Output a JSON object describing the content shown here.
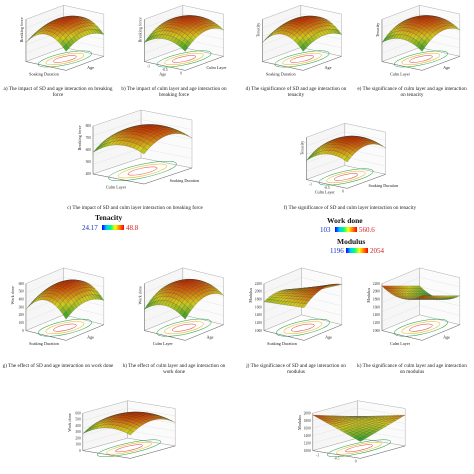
{
  "colors": {
    "legend_low": "#0000ff",
    "legend_high": "#ff0000",
    "surface_high": "#c83200",
    "surface_low": "#1c9a2e",
    "contour_line": "#e04040"
  },
  "panels": {
    "a": {
      "caption": "a) The impact of SD and age interaction on breaking force",
      "zlabel": "Breaking force",
      "xlabel": "Soaking Duration",
      "ylabel": "Age"
    },
    "b": {
      "caption": "b) The impact of culm layer and age interaction on breaking force",
      "zlabel": "Breaking force",
      "xlabel": "Age",
      "ylabel": "Culm Layer",
      "ticks": [
        "-1",
        "-0.5",
        "0"
      ]
    },
    "c": {
      "caption": "c) The impact of SD and culm layer interaction on breaking force",
      "zlabel": "Breaking force",
      "xlabel": "Culm Layer",
      "ylabel": "Soaking Duration",
      "zticks": [
        "800",
        "700",
        "600",
        "500",
        "400"
      ]
    },
    "d": {
      "caption": "d) The significance of SD and age interaction on tenacity",
      "zlabel": "Tenacity",
      "xlabel": "Soaking Duration",
      "ylabel": "Age"
    },
    "e": {
      "caption": "e) The significance of culm layer and age interaction on tenacity",
      "zlabel": "Tenacity",
      "xlabel": "Culm Layer",
      "ylabel": "Age"
    },
    "f": {
      "caption": "f) The significance of SD and culm layer interaction on tenacity",
      "zlabel": "Tenacity",
      "xlabel": "Culm Layer",
      "ylabel": "Soaking Duration",
      "ticks": [
        "-1",
        "-0.5",
        "0"
      ]
    },
    "g": {
      "caption": "g) The effect of SD and age interaction on work done",
      "zlabel": "Work done",
      "xlabel": "Soaking Duration",
      "ylabel": "Age",
      "zticks": [
        "600",
        "500",
        "400",
        "300",
        "200",
        "100",
        "0"
      ]
    },
    "h": {
      "caption": "h) The effect of culm layer and age interaction on work done",
      "zlabel": "Work done",
      "xlabel": "Culm Layer",
      "ylabel": "Age"
    },
    "i": {
      "zlabel": "Work done",
      "zticks": [
        "600",
        "500",
        "400",
        "300",
        "200",
        "100",
        "0"
      ]
    },
    "j": {
      "caption": "j) The significance of SD and age interaction on modulus",
      "zlabel": "Modulus",
      "xlabel": "Soaking Duration",
      "ylabel": "Age",
      "zticks": [
        "2200",
        "2000",
        "1800",
        "1600",
        "1400",
        "1200",
        "1000"
      ]
    },
    "k": {
      "caption": "k) The significance of culm layer and age interaction on modulus",
      "zlabel": "Modulus",
      "xlabel": "Culm Layer",
      "ylabel": "Age",
      "zticks": [
        "2200",
        "2000",
        "1800",
        "1600",
        "1400",
        "1200",
        "1000"
      ]
    },
    "l": {
      "zlabel": "Modulus",
      "zticks": [
        "2000",
        "1800",
        "1600",
        "1400",
        "1200",
        "1000"
      ],
      "ticks": [
        "-1",
        "-0.5",
        "0"
      ]
    }
  },
  "legends": {
    "tenacity": {
      "title": "Tenacity",
      "min": "24.17",
      "max": "48.8"
    },
    "work_done": {
      "title": "Work done",
      "min": "103",
      "max": "560.6"
    },
    "modulus": {
      "title": "Modulus",
      "min": "1196",
      "max": "2054"
    }
  }
}
